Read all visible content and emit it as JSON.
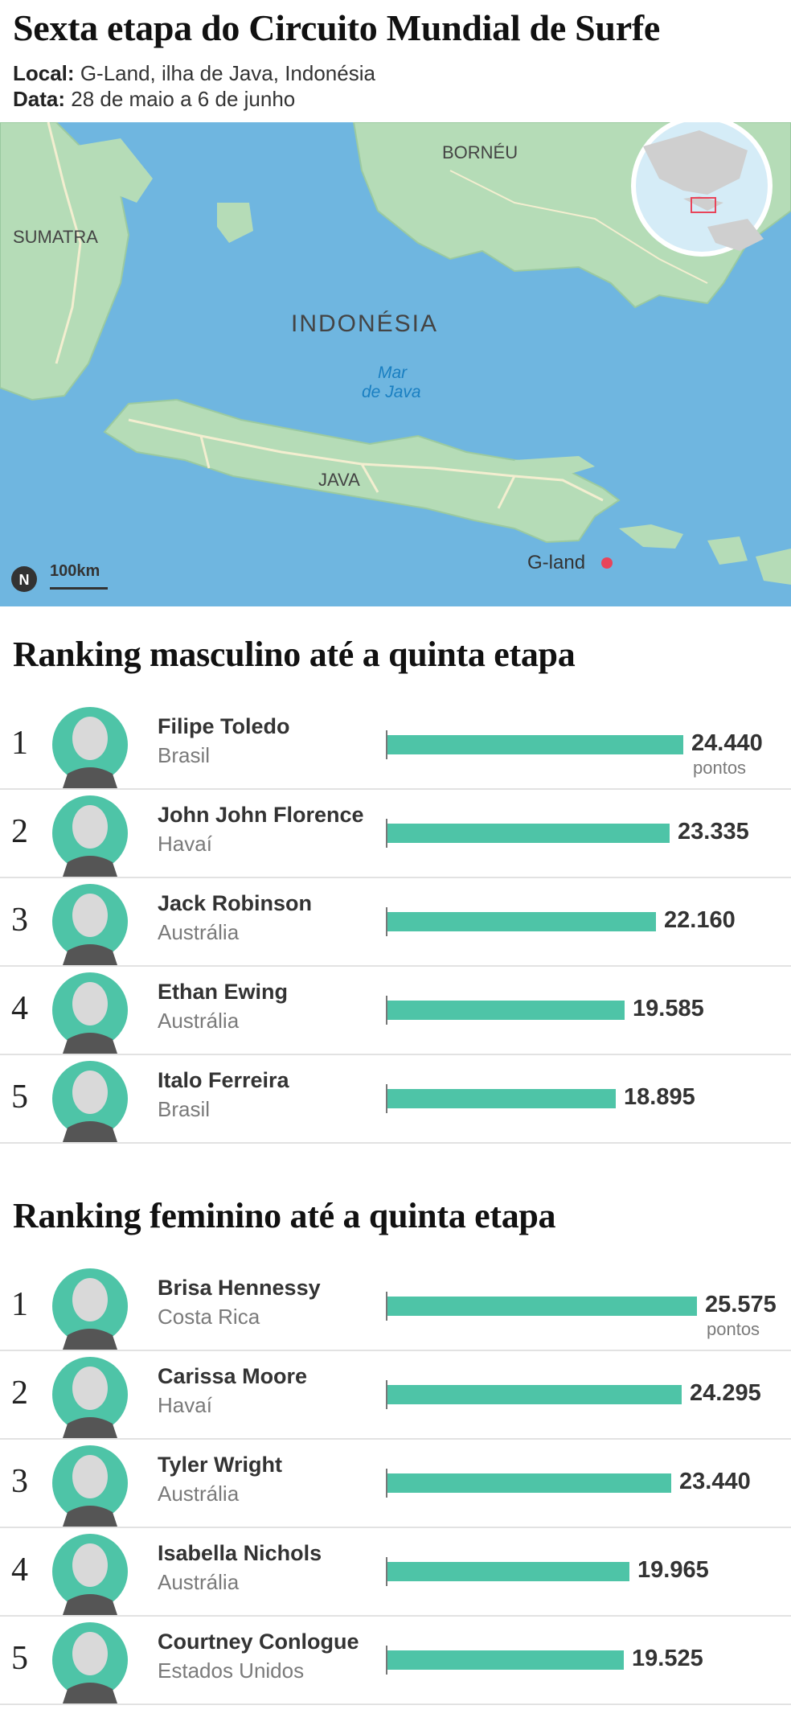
{
  "header": {
    "title": "Sexta etapa do Circuito Mundial de Surfe",
    "local_label": "Local:",
    "local_value": "G-Land, ilha de Java, Indonésia",
    "data_label": "Data:",
    "data_value": "28 de maio a 6 de junho"
  },
  "map": {
    "labels": {
      "sumatra": "SUMATRA",
      "borneu": "BORNÉU",
      "indonesia": "INDONÉSIA",
      "mar_line1": "Mar",
      "mar_line2": "de Java",
      "java": "JAVA",
      "gland": "G-land"
    },
    "north": "N",
    "scale": "100km",
    "colors": {
      "sea": "#6fb6e0",
      "land": "#b5dcb7",
      "road": "#f3eed0",
      "marker": "#e8445a"
    }
  },
  "chart_data": [
    {
      "type": "bar",
      "title": "Ranking masculino até a quinta etapa",
      "unit": "pontos",
      "categories": [
        "Filipe Toledo",
        "John John Florence",
        "Jack Robinson",
        "Ethan Ewing",
        "Italo Ferreira"
      ],
      "ranks": [
        "1",
        "2",
        "3",
        "4",
        "5"
      ],
      "countries": [
        "Brasil",
        "Havaí",
        "Austrália",
        "Austrália",
        "Brasil"
      ],
      "values": [
        24440,
        23335,
        22160,
        19585,
        18895
      ],
      "value_labels": [
        "24.440",
        "23.335",
        "22.160",
        "19.585",
        "18.895"
      ],
      "xlim": [
        0,
        25575
      ]
    },
    {
      "type": "bar",
      "title": "Ranking feminino até a quinta etapa",
      "unit": "pontos",
      "categories": [
        "Brisa Hennessy",
        "Carissa Moore",
        "Tyler Wright",
        "Isabella Nichols",
        "Courtney Conlogue"
      ],
      "ranks": [
        "1",
        "2",
        "3",
        "4",
        "5"
      ],
      "countries": [
        "Costa Rica",
        "Havaí",
        "Austrália",
        "Austrália",
        "Estados Unidos"
      ],
      "values": [
        25575,
        24295,
        23440,
        19965,
        19525
      ],
      "value_labels": [
        "25.575",
        "24.295",
        "23.440",
        "19.965",
        "19.525"
      ],
      "xlim": [
        0,
        25575
      ]
    }
  ],
  "colors": {
    "bar": "#4ec4a7",
    "avatar_bg": "#4ec4a7"
  }
}
